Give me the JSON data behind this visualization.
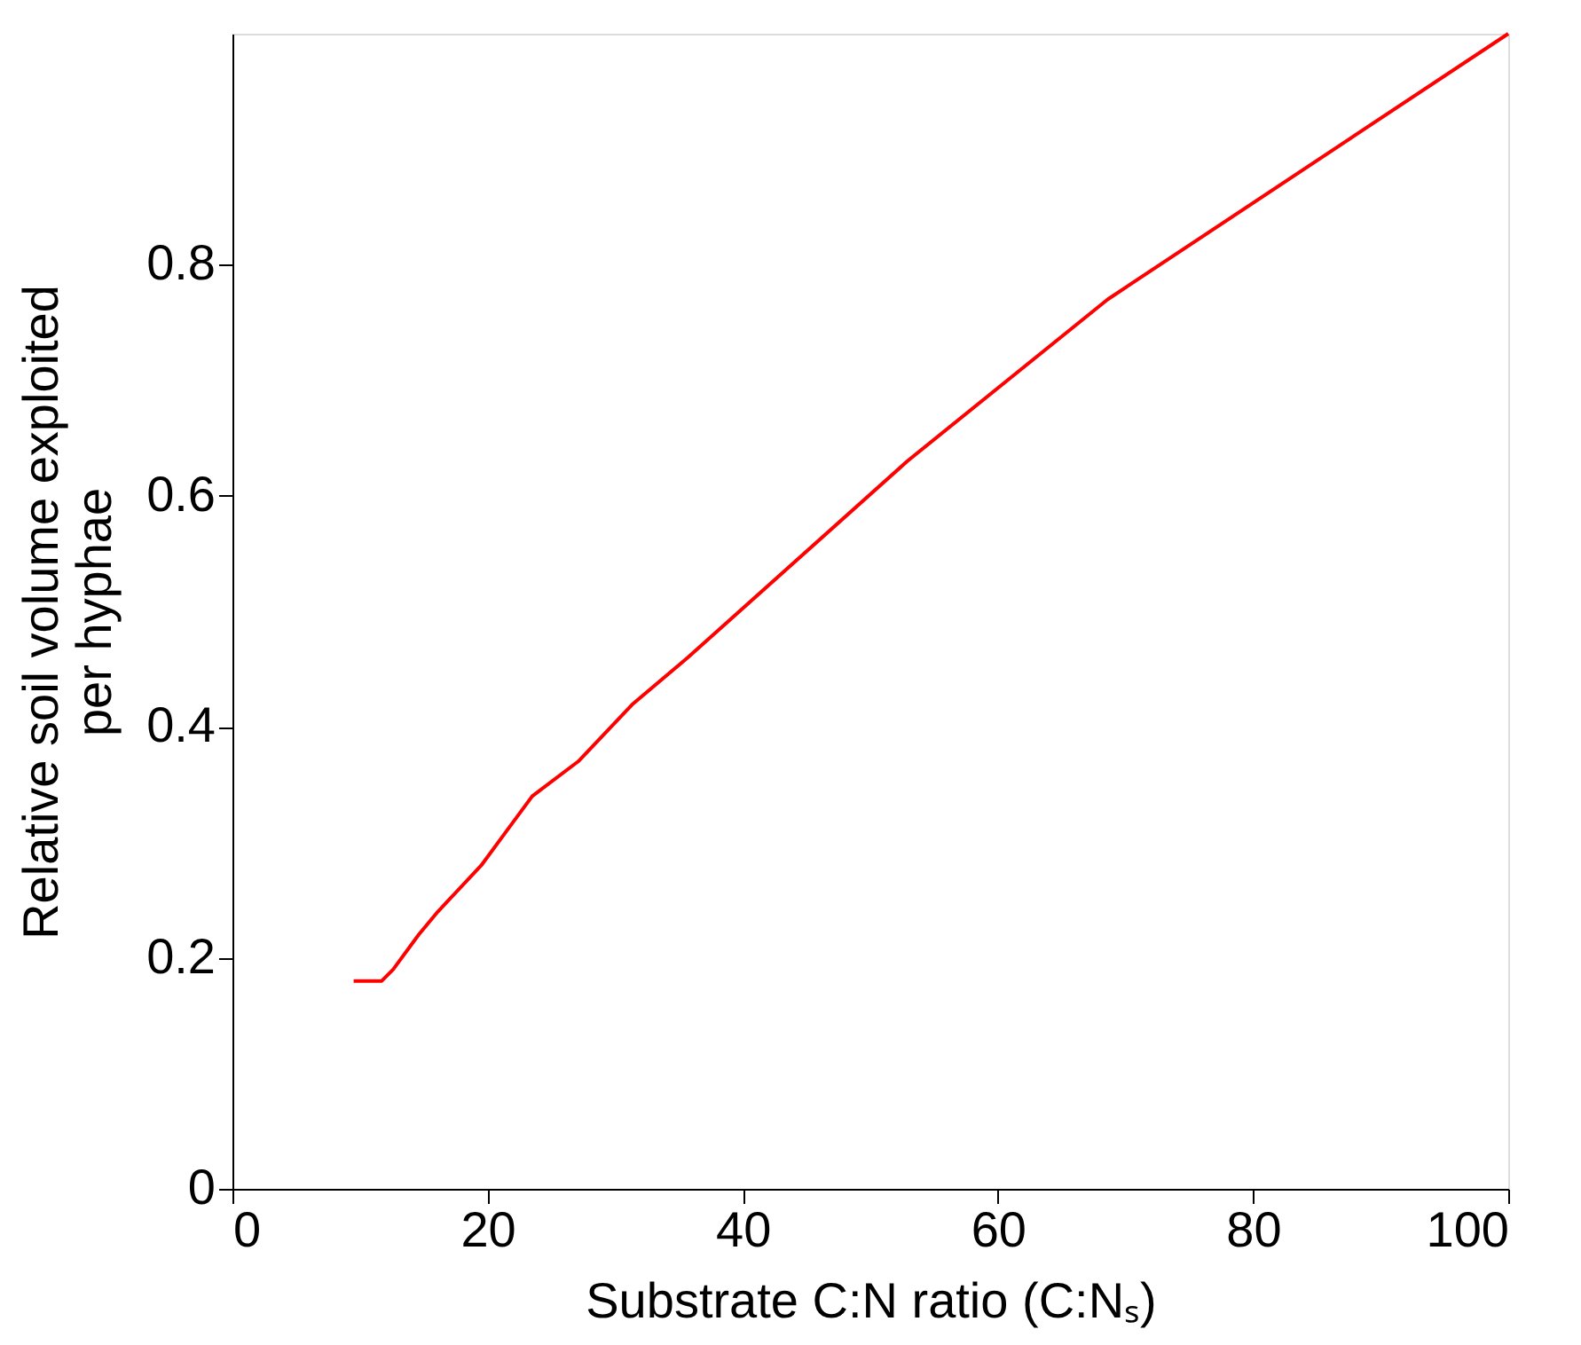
{
  "chart_data": {
    "type": "line",
    "xlabel": "Substrate C:N ratio (C:Nₛ)",
    "ylabel": "Relative soil volume exploited\nper hyphae",
    "xlim": [
      0,
      100
    ],
    "xticks": [
      0,
      20,
      40,
      60,
      80,
      100
    ],
    "ylim": [
      0,
      1
    ],
    "yticks": [
      0,
      0.2,
      0.4,
      0.6,
      0.8
    ],
    "grid": false,
    "marker": "none",
    "line_style": "solid",
    "series": [
      {
        "color": "#ff0000",
        "x": [
          9.5,
          11.7,
          12.6,
          14.6,
          16.1,
          19.5,
          21.5,
          23.5,
          27.1,
          31.4,
          35.7,
          52.9,
          68.6,
          100
        ],
        "values": [
          0.18,
          0.18,
          0.19,
          0.22,
          0.24,
          0.28,
          0.31,
          0.34,
          0.37,
          0.42,
          0.46,
          0.63,
          0.77,
          1.0
        ]
      }
    ]
  }
}
